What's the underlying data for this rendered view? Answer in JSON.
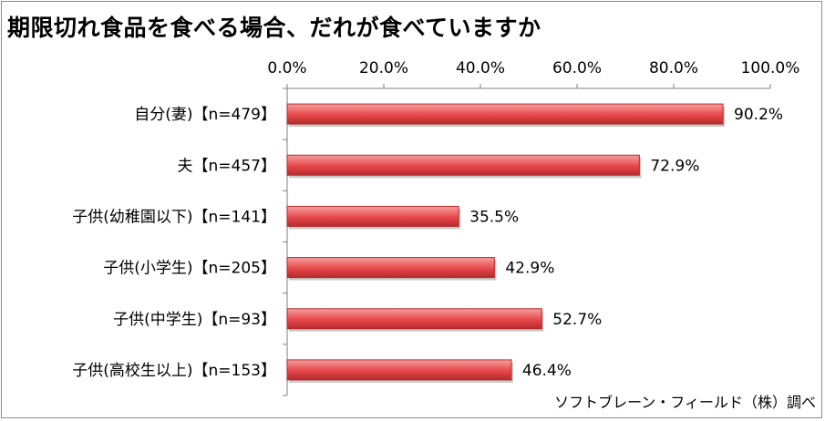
{
  "title": "期限切れ食品を食べる場合、だれが食べていますか",
  "source": "ソフトブレーン・フィールド（株）調べ",
  "colors": {
    "bar": "#e8474a",
    "bar_light": "#f4a09e",
    "bar_stroke": "#b42a2c",
    "axis": "#7f7f7f"
  },
  "chart_data": {
    "type": "bar",
    "orientation": "horizontal",
    "title": "期限切れ食品を食べる場合、だれが食べていますか",
    "categories": [
      "自分(妻)【n=479】",
      "夫【n=457】",
      "子供(幼稚園以下)【n=141】",
      "子供(小学生)【n=205】",
      "子供(中学生)【n=93】",
      "子供(高校生以上)【n=153】"
    ],
    "values": [
      90.2,
      72.9,
      35.5,
      42.9,
      52.7,
      46.4
    ],
    "value_labels": [
      "90.2%",
      "72.9%",
      "35.5%",
      "42.9%",
      "52.7%",
      "46.4%"
    ],
    "xlim": [
      0,
      100
    ],
    "xticks": [
      0,
      20,
      40,
      60,
      80,
      100
    ],
    "xtick_labels": [
      "0.0%",
      "20.0%",
      "40.0%",
      "60.0%",
      "80.0%",
      "100.0%"
    ],
    "x_axis_position": "top",
    "grid": false,
    "legend": "none"
  }
}
